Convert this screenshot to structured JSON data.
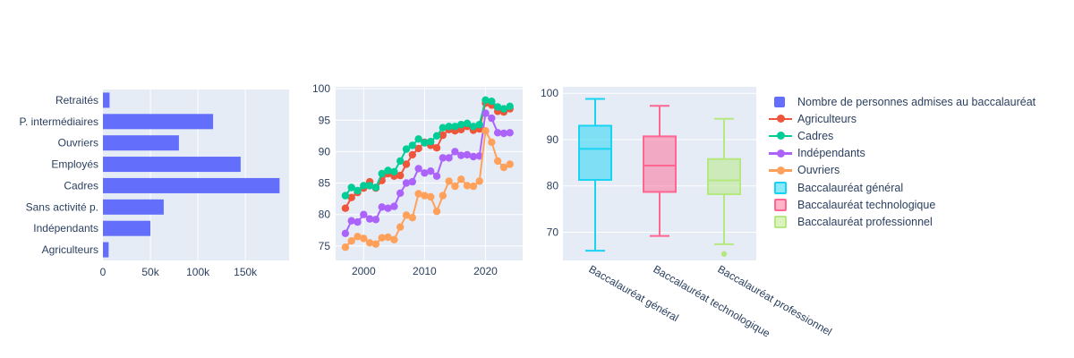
{
  "theme": {
    "paper_bg": "#FFFFFF",
    "plot_bg": "#E5ECF6",
    "grid_color": "#FFFFFF",
    "text_color": "#2A3F5F"
  },
  "legend": {
    "items": [
      {
        "symbol": "square",
        "color": "#636EFA",
        "label": "Nombre de personnes admises au baccalauréat"
      },
      {
        "symbol": "line",
        "color": "#EF553B",
        "label": "Agriculteurs"
      },
      {
        "symbol": "line",
        "color": "#00CC96",
        "label": "Cadres"
      },
      {
        "symbol": "line",
        "color": "#AB63FA",
        "label": "Indépendants"
      },
      {
        "symbol": "line",
        "color": "#FFA15A",
        "label": "Ouvriers"
      },
      {
        "symbol": "box",
        "color": "#19D3F3",
        "label": "Baccalauréat général"
      },
      {
        "symbol": "box",
        "color": "#FF6692",
        "label": "Baccalauréat technologique"
      },
      {
        "symbol": "box",
        "color": "#B6E880",
        "label": "Baccalauréat professionnel"
      }
    ]
  },
  "chart_data": [
    {
      "type": "bar",
      "orientation": "horizontal",
      "name": "Nombre de personnes admises au baccalauréat",
      "color": "#636EFA",
      "categories": [
        "Retraités",
        "P. intermédiaires",
        "Ouvriers",
        "Employés",
        "Cadres",
        "Sans activité p.",
        "Indépendants",
        "Agriculteurs"
      ],
      "values": [
        7000,
        116000,
        80000,
        145000,
        186000,
        64000,
        50000,
        6000
      ],
      "xlim": [
        0,
        196000
      ],
      "xticks": [
        {
          "v": 0,
          "label": "0"
        },
        {
          "v": 50000,
          "label": "50k"
        },
        {
          "v": 100000,
          "label": "100k"
        },
        {
          "v": 150000,
          "label": "150k"
        }
      ],
      "grid": true
    },
    {
      "type": "line",
      "x": [
        1997,
        1998,
        1999,
        2000,
        2001,
        2002,
        2003,
        2004,
        2005,
        2006,
        2007,
        2008,
        2009,
        2010,
        2011,
        2012,
        2013,
        2014,
        2015,
        2016,
        2017,
        2018,
        2019,
        2020,
        2021,
        2022,
        2023,
        2024
      ],
      "series": [
        {
          "name": "Agriculteurs",
          "color": "#EF553B",
          "values": [
            81,
            82.7,
            83.5,
            84.2,
            85.2,
            84.2,
            85.4,
            86.5,
            86.1,
            86.2,
            88,
            89.5,
            90.5,
            91.5,
            91,
            90.6,
            92.6,
            93.5,
            93.3,
            93.5,
            94,
            93.4,
            93.6,
            97.7,
            97.4,
            96.4,
            96.3,
            96.8
          ]
        },
        {
          "name": "Cadres",
          "color": "#00CC96",
          "values": [
            83,
            84.3,
            83.8,
            84.6,
            84.6,
            84.3,
            86.5,
            87,
            86.8,
            88.5,
            90.4,
            91,
            92,
            91.4,
            91.6,
            92.5,
            93.8,
            94,
            94,
            94.3,
            94.5,
            94,
            94.3,
            98.2,
            98,
            97.1,
            96.8,
            97.2
          ]
        },
        {
          "name": "Indépendants",
          "color": "#AB63FA",
          "values": [
            77,
            79,
            78.8,
            80,
            79.3,
            79.2,
            81.2,
            81,
            81.3,
            83.4,
            85,
            85.2,
            87.3,
            86.6,
            86.9,
            86.1,
            89,
            89,
            90,
            89.4,
            89.5,
            89.2,
            89.3,
            96.1,
            95.3,
            93,
            92.9,
            93
          ]
        },
        {
          "name": "Ouvriers",
          "color": "#FFA15A",
          "values": [
            74.8,
            75.8,
            76.5,
            76.2,
            75.5,
            75.3,
            76.3,
            76.4,
            76,
            78,
            79.9,
            79.5,
            83.3,
            83,
            82.8,
            80.5,
            83,
            85.3,
            84.5,
            85.6,
            84.6,
            84.5,
            85.3,
            93.3,
            91.5,
            88.5,
            87.5,
            88
          ]
        }
      ],
      "xlim": [
        1995.4,
        2026.1
      ],
      "ylim": [
        72.7,
        100.3
      ],
      "xticks": [
        2000,
        2010,
        2020
      ],
      "yticks": [
        75,
        80,
        85,
        90,
        95,
        100
      ],
      "grid": true
    },
    {
      "type": "box",
      "categories": [
        "Baccalauréat général",
        "Baccalauréat technologique",
        "Baccalauréat professionnel"
      ],
      "boxes": [
        {
          "label": "Baccalauréat général",
          "color": "#19D3F3",
          "min": 66,
          "q1": 81.3,
          "median": 88,
          "q3": 93,
          "max": 98.8,
          "outliers": []
        },
        {
          "label": "Baccalauréat technologique",
          "color": "#FF6692",
          "min": 69.2,
          "q1": 78.7,
          "median": 84.4,
          "q3": 90.7,
          "max": 97.3,
          "outliers": []
        },
        {
          "label": "Baccalauréat professionnel",
          "color": "#B6E880",
          "min": 67.4,
          "q1": 78.2,
          "median": 81.2,
          "q3": 85.8,
          "max": 94.5,
          "outliers": [
            65.3
          ]
        }
      ],
      "ylim": [
        63.9,
        101.4
      ],
      "yticks": [
        70,
        80,
        90,
        100
      ],
      "xlabel_angle_deg": 30,
      "grid": true
    }
  ]
}
